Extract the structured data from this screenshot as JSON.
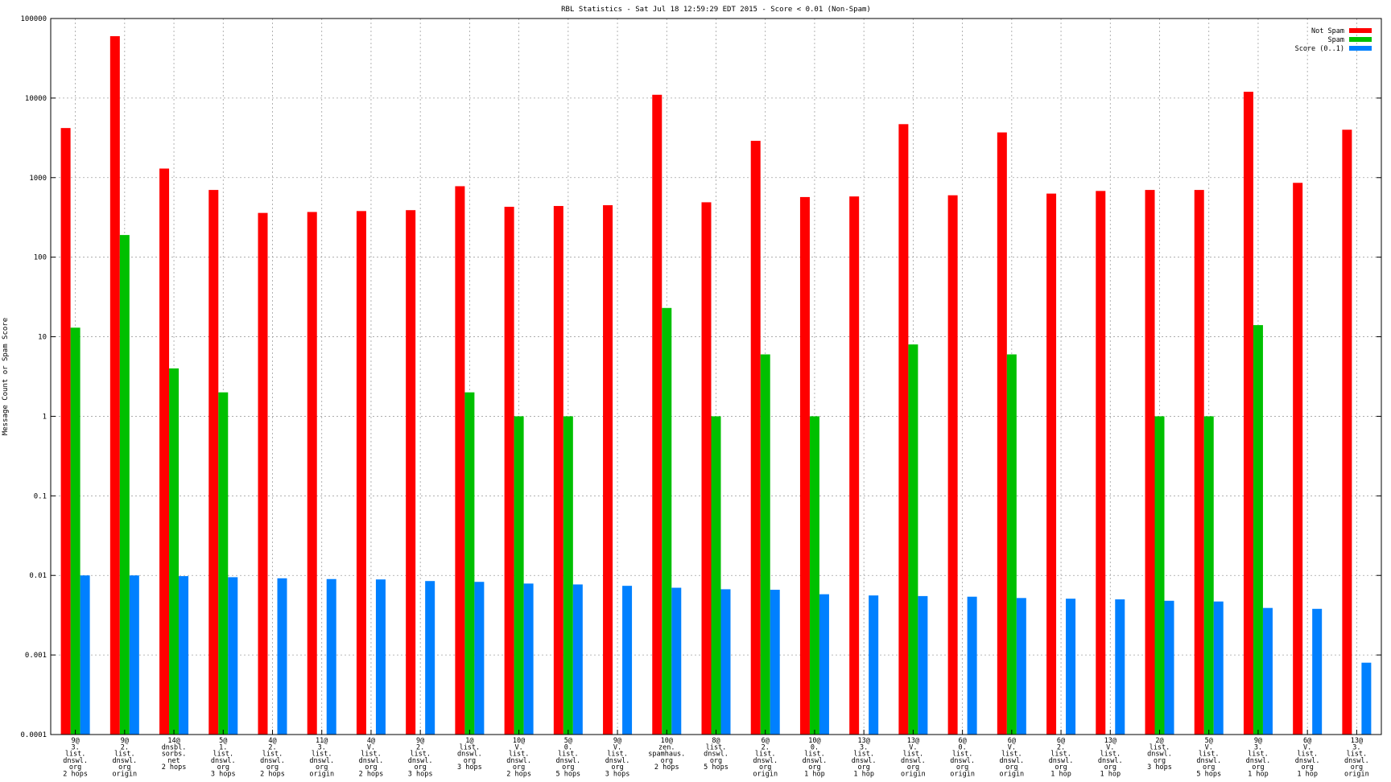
{
  "chart_data": {
    "type": "bar",
    "title": "RBL Statistics - Sat Jul 18 12:59:29 EDT 2015 - Score < 0.01 (Non-Spam)",
    "xlabel": "",
    "ylabel": "Message Count or Spam Score",
    "yscale": "log",
    "ylim": [
      0.0001,
      100000
    ],
    "yticks": [
      "0.0001",
      "0.001",
      "0.01",
      "0.1",
      "1",
      "10",
      "100",
      "1000",
      "10000",
      "100000"
    ],
    "grid": true,
    "legend_position": "top-right",
    "categories": [
      [
        "9@",
        "3.",
        "list.",
        "dnswl.",
        "org",
        "2 hops"
      ],
      [
        "9@",
        "2.",
        "list.",
        "dnswl.",
        "org",
        "origin"
      ],
      [
        "14@",
        "dnsbl.",
        "sorbs.",
        "net",
        "2 hops"
      ],
      [
        "5@",
        "1.",
        "list.",
        "dnswl.",
        "org",
        "3 hops"
      ],
      [
        "4@",
        "2.",
        "list.",
        "dnswl.",
        "org",
        "2 hops"
      ],
      [
        "11@",
        "3.",
        "list.",
        "dnswl.",
        "org",
        "origin"
      ],
      [
        "4@",
        "V.",
        "list.",
        "dnswl.",
        "org",
        "2 hops"
      ],
      [
        "9@",
        "2.",
        "list.",
        "dnswl.",
        "org",
        "3 hops"
      ],
      [
        "1@",
        "list.",
        "dnswl.",
        "org",
        "3 hops"
      ],
      [
        "10@",
        "V.",
        "list.",
        "dnswl.",
        "org",
        "2 hops"
      ],
      [
        "5@",
        "0.",
        "list.",
        "dnswl.",
        "org",
        "5 hops"
      ],
      [
        "9@",
        "V.",
        "list.",
        "dnswl.",
        "org",
        "3 hops"
      ],
      [
        "10@",
        "zen.",
        "spamhaus.",
        "org",
        "2 hops"
      ],
      [
        "8@",
        "list.",
        "dnswl.",
        "org",
        "5 hops"
      ],
      [
        "6@",
        "2.",
        "list.",
        "dnswl.",
        "org",
        "origin"
      ],
      [
        "10@",
        "0.",
        "list.",
        "dnswl.",
        "org",
        "1 hop"
      ],
      [
        "13@",
        "3.",
        "list.",
        "dnswl.",
        "org",
        "1 hop"
      ],
      [
        "13@",
        "V.",
        "list.",
        "dnswl.",
        "org",
        "origin"
      ],
      [
        "6@",
        "0.",
        "list.",
        "dnswl.",
        "org",
        "origin"
      ],
      [
        "6@",
        "V.",
        "list.",
        "dnswl.",
        "org",
        "origin"
      ],
      [
        "6@",
        "2.",
        "list.",
        "dnswl.",
        "org",
        "1 hop"
      ],
      [
        "13@",
        "V.",
        "list.",
        "dnswl.",
        "org",
        "1 hop"
      ],
      [
        "2@",
        "list.",
        "dnswl.",
        "org",
        "3 hops"
      ],
      [
        "5@",
        "V.",
        "list.",
        "dnswl.",
        "org",
        "5 hops"
      ],
      [
        "9@",
        "3.",
        "list.",
        "dnswl.",
        "org",
        "1 hop"
      ],
      [
        "6@",
        "V.",
        "list.",
        "dnswl.",
        "org",
        "1 hop"
      ],
      [
        "13@",
        "3.",
        "list.",
        "dnswl.",
        "org",
        "origin"
      ]
    ],
    "series": [
      {
        "name": "Not Spam",
        "color": "#ff0000",
        "values": [
          4200,
          60000,
          1300,
          700,
          360,
          370,
          380,
          390,
          780,
          430,
          440,
          450,
          11000,
          490,
          2900,
          570,
          580,
          4700,
          600,
          3700,
          630,
          680,
          700,
          700,
          12000,
          860,
          4000
        ]
      },
      {
        "name": "Spam",
        "color": "#00c000",
        "values": [
          13,
          190,
          4,
          2,
          null,
          null,
          null,
          null,
          2,
          1,
          1,
          null,
          23,
          1,
          6,
          1,
          null,
          8,
          null,
          6,
          null,
          null,
          1,
          1,
          14,
          null,
          null
        ]
      },
      {
        "name": "Score (0..1)",
        "color": "#0080ff",
        "values": [
          0.01,
          0.01,
          0.0098,
          0.0095,
          0.0092,
          0.009,
          0.0089,
          0.0085,
          0.0083,
          0.0079,
          0.0077,
          0.0074,
          0.007,
          0.0067,
          0.0066,
          0.0058,
          0.0056,
          0.0055,
          0.0054,
          0.0052,
          0.0051,
          0.005,
          0.0048,
          0.0047,
          0.0039,
          0.0038,
          0.0008
        ]
      }
    ]
  }
}
